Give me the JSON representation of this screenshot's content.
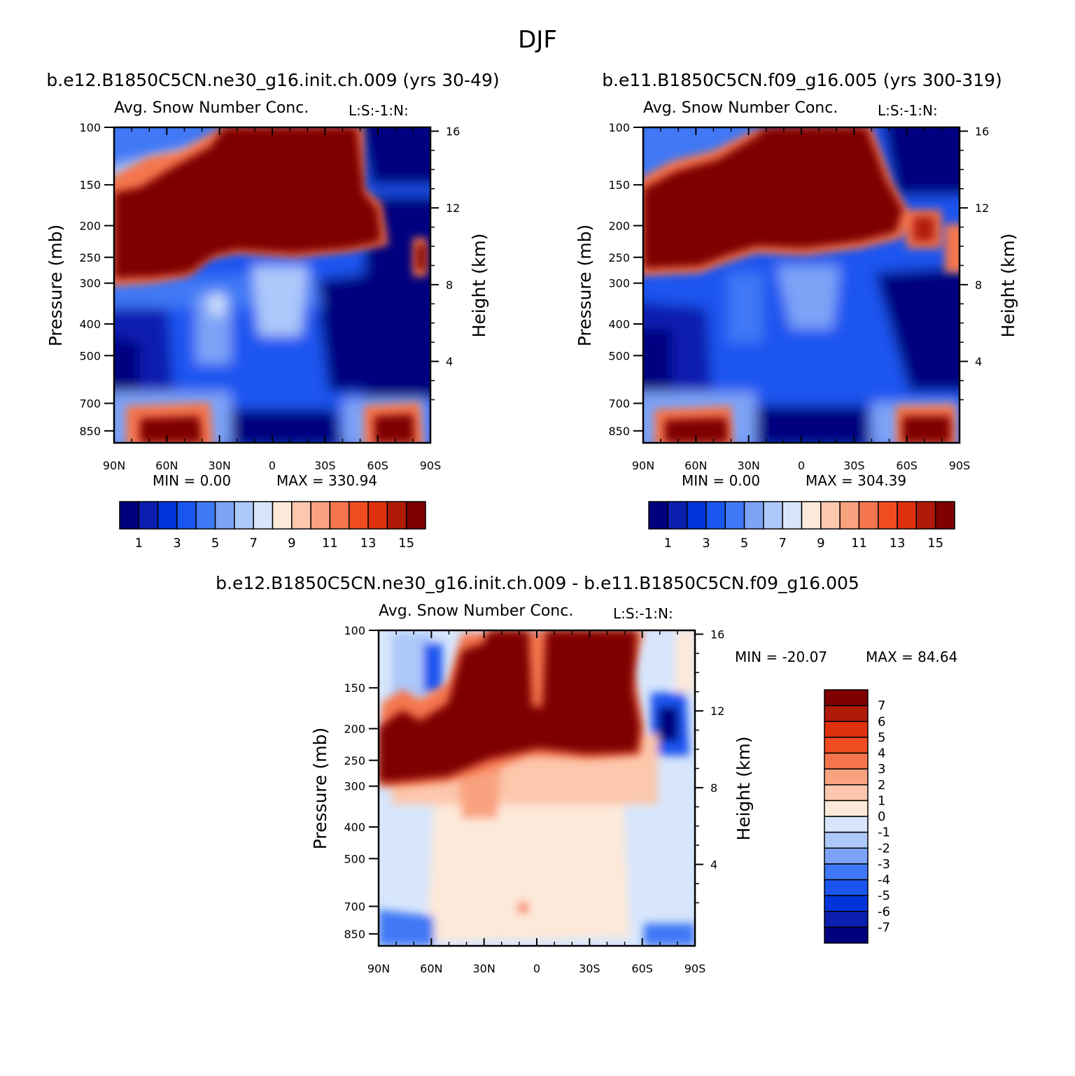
{
  "figure": {
    "title": "DJF",
    "case_a_title": "b.e12.B1850C5CN.ne30_g16.init.ch.009 (yrs 30-49)",
    "case_b_title": "b.e11.B1850C5CN.f09_g16.005 (yrs 300-319)",
    "diff_title": "b.e12.B1850C5CN.ne30_g16.init.ch.009 - b.e11.B1850C5CN.f09_g16.005"
  },
  "colors": {
    "seq_levels": [
      "#00007f",
      "#0a1fb0",
      "#0033d9",
      "#1a55f0",
      "#3f78f5",
      "#7da3f7",
      "#adc8fa",
      "#d7e6fc",
      "#fde9d9",
      "#fcc7ac",
      "#f9a27f",
      "#f5764e",
      "#f04c22",
      "#de300d",
      "#b01a08",
      "#7f0000"
    ],
    "diff_levels": [
      "#00007f",
      "#0a1fb0",
      "#0033d9",
      "#1a55f0",
      "#3f78f5",
      "#7da3f7",
      "#adc8fa",
      "#d7e6fc",
      "#fde9d9",
      "#fcc7ac",
      "#f9a27f",
      "#f5764e",
      "#f04c22",
      "#de300d",
      "#b01a08",
      "#7f0000"
    ]
  },
  "chart_data": [
    {
      "type": "heatmap",
      "title": "Avg. Snow Number Conc.",
      "tag": "L:S:-1:N:",
      "xlabel": "",
      "ylabel": "Pressure (mb)",
      "y2label": "Height (km)",
      "x_ticks": [
        "90N",
        "60N",
        "30N",
        "0",
        "30S",
        "60S",
        "90S"
      ],
      "y_ticks": [
        "100",
        "150",
        "200",
        "250",
        "300",
        "400",
        "500",
        "700",
        "850"
      ],
      "y2_ticks": [
        "16",
        "12",
        "8",
        "4"
      ],
      "min_label": "MIN = 0.00",
      "max_label": "MAX = 330.94",
      "colorbar_labels": [
        "1",
        "3",
        "5",
        "7",
        "9",
        "11",
        "13",
        "15"
      ],
      "min": 0.0,
      "max": 330.94
    },
    {
      "type": "heatmap",
      "title": "Avg. Snow Number Conc.",
      "tag": "L:S:-1:N:",
      "xlabel": "",
      "ylabel": "Pressure (mb)",
      "y2label": "Height (km)",
      "x_ticks": [
        "90N",
        "60N",
        "30N",
        "0",
        "30S",
        "60S",
        "90S"
      ],
      "y_ticks": [
        "100",
        "150",
        "200",
        "250",
        "300",
        "400",
        "500",
        "700",
        "850"
      ],
      "y2_ticks": [
        "16",
        "12",
        "8",
        "4"
      ],
      "min_label": "MIN = 0.00",
      "max_label": "MAX = 304.39",
      "colorbar_labels": [
        "1",
        "3",
        "5",
        "7",
        "9",
        "11",
        "13",
        "15"
      ],
      "min": 0.0,
      "max": 304.39
    },
    {
      "type": "heatmap",
      "title": "Avg. Snow Number Conc.",
      "tag": "L:S:-1:N:",
      "xlabel": "",
      "ylabel": "Pressure (mb)",
      "y2label": "Height (km)",
      "x_ticks": [
        "90N",
        "60N",
        "30N",
        "0",
        "30S",
        "60S",
        "90S"
      ],
      "y_ticks": [
        "100",
        "150",
        "200",
        "250",
        "300",
        "400",
        "500",
        "700",
        "850"
      ],
      "y2_ticks": [
        "16",
        "12",
        "8",
        "4"
      ],
      "min_label": "MIN = -20.07",
      "max_label": "MAX = 84.64",
      "colorbar_labels": [
        "7",
        "6",
        "5",
        "4",
        "3",
        "2",
        "1",
        "0",
        "-1",
        "-2",
        "-3",
        "-4",
        "-5",
        "-6",
        "-7"
      ],
      "min": -20.07,
      "max": 84.64
    }
  ]
}
